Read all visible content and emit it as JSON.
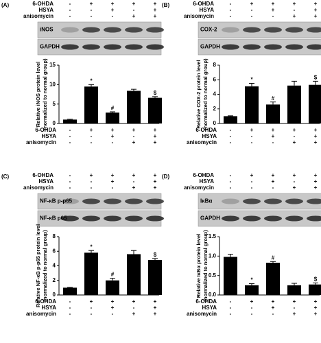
{
  "chart_data": [
    {
      "type": "bar",
      "panel": "(A)",
      "blots": [
        "iNOS",
        "GAPDH"
      ],
      "ylabel": [
        "Relative iNOS protein level",
        "(normalized to normal group)"
      ],
      "conditions": [
        {
          "name": "6-OHDA",
          "signs": [
            "-",
            "+",
            "+",
            "+",
            "+"
          ]
        },
        {
          "name": "HSYA",
          "signs": [
            "-",
            "-",
            "+",
            "-",
            "+"
          ]
        },
        {
          "name": "anisomycin",
          "signs": [
            "-",
            "-",
            "-",
            "+",
            "+"
          ]
        }
      ],
      "values": [
        1,
        9.5,
        2.8,
        8.4,
        6.6
      ],
      "errors": [
        0.1,
        0.5,
        0.2,
        0.4,
        0.3
      ],
      "markers": [
        null,
        "*",
        "#",
        null,
        "$"
      ],
      "color": "#000000",
      "ylim": [
        0,
        15
      ],
      "yticks": [
        0,
        5,
        10,
        15
      ]
    },
    {
      "type": "bar",
      "panel": "(B)",
      "blots": [
        "COX-2",
        "GAPDH"
      ],
      "ylabel": [
        "Relative COX-2 protein level",
        "(normalized to normal group)"
      ],
      "conditions": [
        {
          "name": "6-OHDA",
          "signs": [
            "-",
            "+",
            "+",
            "+",
            "+"
          ]
        },
        {
          "name": "HSYA",
          "signs": [
            "-",
            "-",
            "+",
            "-",
            "+"
          ]
        },
        {
          "name": "anisomycin",
          "signs": [
            "-",
            "-",
            "-",
            "+",
            "+"
          ]
        }
      ],
      "values": [
        1,
        5.1,
        2.6,
        5.2,
        5.3
      ],
      "errors": [
        0.05,
        0.4,
        0.35,
        0.6,
        0.5
      ],
      "markers": [
        null,
        "*",
        "#",
        null,
        "$"
      ],
      "color": "#000000",
      "ylim": [
        0,
        8
      ],
      "yticks": [
        0,
        2,
        4,
        6,
        8
      ]
    },
    {
      "type": "bar",
      "panel": "(C)",
      "blots": [
        "NF-κB p-p65",
        "NF-κB p65"
      ],
      "ylabel": [
        "Relative NF-κB p-p65 protein level",
        "(normalized to normal group)"
      ],
      "conditions": [
        {
          "name": "6-OHDA",
          "signs": [
            "-",
            "+",
            "+",
            "+",
            "+"
          ]
        },
        {
          "name": "HSYA",
          "signs": [
            "-",
            "-",
            "+",
            "-",
            "+"
          ]
        },
        {
          "name": "anisomycin",
          "signs": [
            "-",
            "-",
            "-",
            "+",
            "+"
          ]
        }
      ],
      "values": [
        1,
        5.8,
        2.0,
        5.6,
        4.8
      ],
      "errors": [
        0.05,
        0.3,
        0.3,
        0.5,
        0.2
      ],
      "markers": [
        null,
        "*",
        "#",
        null,
        "$"
      ],
      "color": "#000000",
      "ylim": [
        0,
        8
      ],
      "yticks": [
        0,
        2,
        4,
        6,
        8
      ]
    },
    {
      "type": "bar",
      "panel": "(D)",
      "blots": [
        "IκBα",
        "GAPDH"
      ],
      "ylabel": [
        "Relative IκBα protein level",
        "(normalized to normal group)"
      ],
      "conditions": [
        {
          "name": "6-OHDA",
          "signs": [
            "-",
            "+",
            "+",
            "+",
            "+"
          ]
        },
        {
          "name": "HSYA",
          "signs": [
            "-",
            "-",
            "+",
            "-",
            "+"
          ]
        },
        {
          "name": "anisomycin",
          "signs": [
            "-",
            "-",
            "-",
            "+",
            "+"
          ]
        }
      ],
      "values": [
        0.98,
        0.25,
        0.83,
        0.25,
        0.27
      ],
      "errors": [
        0.07,
        0.04,
        0.03,
        0.05,
        0.04
      ],
      "markers": [
        null,
        "*",
        "#",
        null,
        "$"
      ],
      "color": "#000000",
      "ylim": [
        0,
        1.5
      ],
      "yticks": [
        {
          "value": 0,
          "label": "0.0"
        },
        {
          "value": 0.5,
          "label": "0.5"
        },
        {
          "value": 1,
          "label": "1.0"
        },
        {
          "value": 1.5,
          "label": "1.5"
        }
      ]
    }
  ]
}
